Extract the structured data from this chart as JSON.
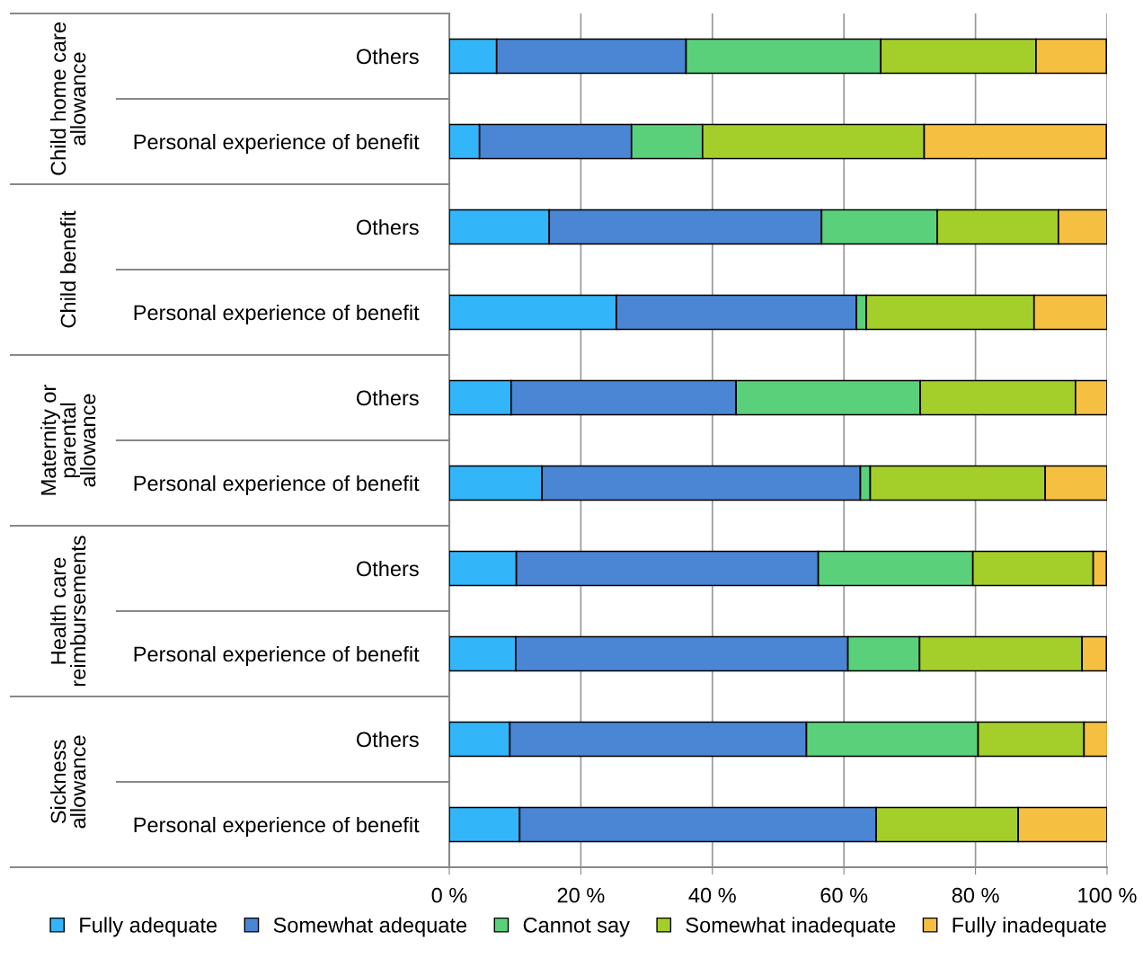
{
  "chart_data": {
    "type": "bar",
    "orientation": "horizontal",
    "stacked": true,
    "categories": [
      "Others",
      "Personal experience of benefit",
      "Others",
      "Personal experience of benefit",
      "Others",
      "Personal experience of benefit",
      "Others",
      "Personal experience of benefit",
      "Others",
      "Personal experience of benefit"
    ],
    "annotations": [
      "Child home care\nallowance",
      "Child benefit",
      "Maternity or\nparental\nallowance",
      "Health care\nreimbursements",
      "Sickness\nallowance"
    ],
    "series": [
      {
        "name": "Fully adequate",
        "color": "#33b5f9",
        "values": [
          7.2,
          4.6,
          15.2,
          25.4,
          9.4,
          14.1,
          10.2,
          10.1,
          9.2,
          10.7
        ]
      },
      {
        "name": "Somewhat adequate",
        "color": "#4a86d4",
        "values": [
          28.8,
          23.1,
          41.4,
          36.5,
          34.2,
          48.4,
          45.9,
          50.5,
          45.1,
          54.2
        ]
      },
      {
        "name": "Cannot say",
        "color": "#5bd07a",
        "values": [
          29.6,
          10.8,
          17.6,
          1.5,
          28.0,
          1.5,
          23.5,
          10.9,
          26.1,
          null
        ]
      },
      {
        "name": "Somewhat inadequate",
        "color": "#a4cf2a",
        "values": [
          23.6,
          33.7,
          18.4,
          25.5,
          23.6,
          26.6,
          18.3,
          24.7,
          16.1,
          21.6
        ]
      },
      {
        "name": "Fully inadequate",
        "color": "#f5bf42",
        "values": [
          10.7,
          27.7,
          7.4,
          11.1,
          4.8,
          9.4,
          2.0,
          3.7,
          3.6,
          13.5
        ]
      }
    ],
    "xlim": [
      0,
      100
    ],
    "xticks": [
      {
        "value": 0,
        "label": "0 %"
      },
      {
        "value": 20,
        "label": "20 %"
      },
      {
        "value": 40,
        "label": "40 %"
      },
      {
        "value": 60,
        "label": "60 %"
      },
      {
        "value": 80,
        "label": "80 %"
      },
      {
        "value": 100,
        "label": "100 %"
      }
    ],
    "grid": "x",
    "legend": "bottom"
  }
}
